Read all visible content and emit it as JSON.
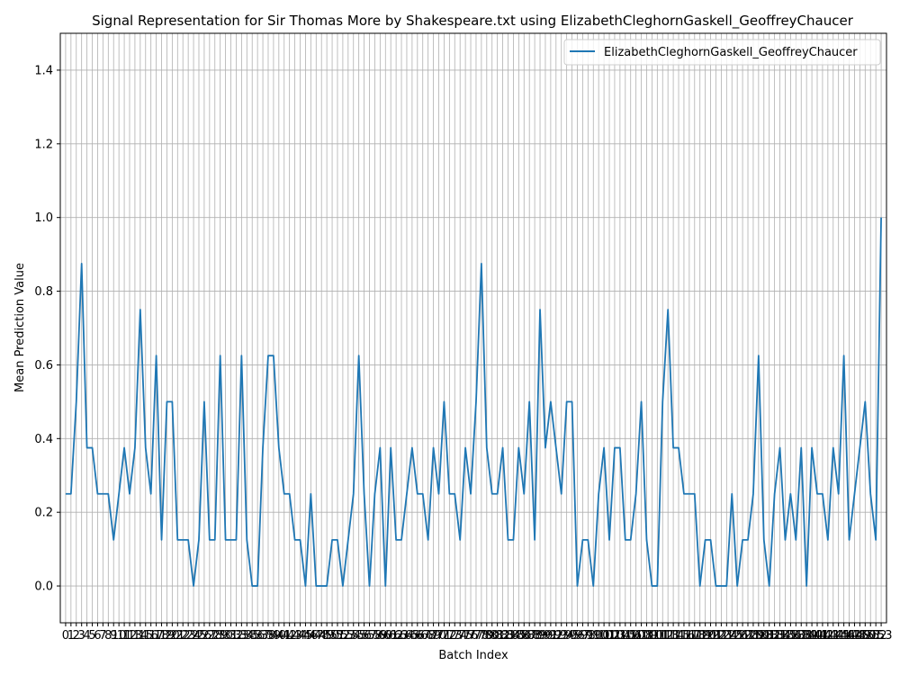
{
  "chart_data": {
    "type": "line",
    "title": "Signal Representation for Sir Thomas More by Shakespeare.txt using ElizabethCleghornGaskell_GeoffreyChaucer",
    "xlabel": "Batch Index",
    "ylabel": "Mean Prediction Value",
    "ylim": [
      -0.1,
      1.5
    ],
    "xlim": [
      -1,
      154
    ],
    "yticks": [
      "0.0",
      "0.2",
      "0.4",
      "0.6",
      "0.8",
      "1.0",
      "1.2",
      "1.4"
    ],
    "ytick_values": [
      0.0,
      0.2,
      0.4,
      0.6,
      0.8,
      1.0,
      1.2,
      1.4
    ],
    "xtick_count": 154,
    "grid": true,
    "legend_position": "top-right",
    "line_color": "#1f77b4",
    "series": [
      {
        "name": "ElizabethCleghornGaskell_GeoffreyChaucer",
        "values": [
          0.25,
          0.25,
          0.5,
          0.875,
          0.375,
          0.375,
          0.25,
          0.25,
          0.25,
          0.125,
          0.25,
          0.375,
          0.25,
          0.375,
          0.75,
          0.375,
          0.25,
          0.625,
          0.125,
          0.5,
          0.5,
          0.125,
          0.125,
          0.125,
          0.0,
          0.125,
          0.5,
          0.125,
          0.125,
          0.625,
          0.125,
          0.125,
          0.125,
          0.625,
          0.125,
          0.0,
          0.0,
          0.375,
          0.625,
          0.625,
          0.375,
          0.25,
          0.25,
          0.125,
          0.125,
          0.0,
          0.25,
          0.0,
          0.0,
          0.0,
          0.125,
          0.125,
          0.0,
          0.125,
          0.25,
          0.625,
          0.25,
          0.0,
          0.25,
          0.375,
          0.0,
          0.375,
          0.125,
          0.125,
          0.25,
          0.375,
          0.25,
          0.25,
          0.125,
          0.375,
          0.25,
          0.5,
          0.25,
          0.25,
          0.125,
          0.375,
          0.25,
          0.5,
          0.875,
          0.375,
          0.25,
          0.25,
          0.375,
          0.125,
          0.125,
          0.375,
          0.25,
          0.5,
          0.125,
          0.75,
          0.375,
          0.5,
          0.375,
          0.25,
          0.5,
          0.5,
          0.0,
          0.125,
          0.125,
          0.0,
          0.25,
          0.375,
          0.125,
          0.375,
          0.375,
          0.125,
          0.125,
          0.25,
          0.5,
          0.125,
          0.0,
          0.0,
          0.5,
          0.75,
          0.375,
          0.375,
          0.25,
          0.25,
          0.25,
          0.0,
          0.125,
          0.125,
          0.0,
          0.0,
          0.0,
          0.25,
          0.0,
          0.125,
          0.125,
          0.25,
          0.625,
          0.125,
          0.0,
          0.25,
          0.375,
          0.125,
          0.25,
          0.125,
          0.375,
          0.0,
          0.375,
          0.25,
          0.25,
          0.125,
          0.375,
          0.25,
          0.625,
          0.125,
          0.25,
          0.375,
          0.5,
          0.25,
          0.125,
          1.0
        ]
      }
    ]
  }
}
